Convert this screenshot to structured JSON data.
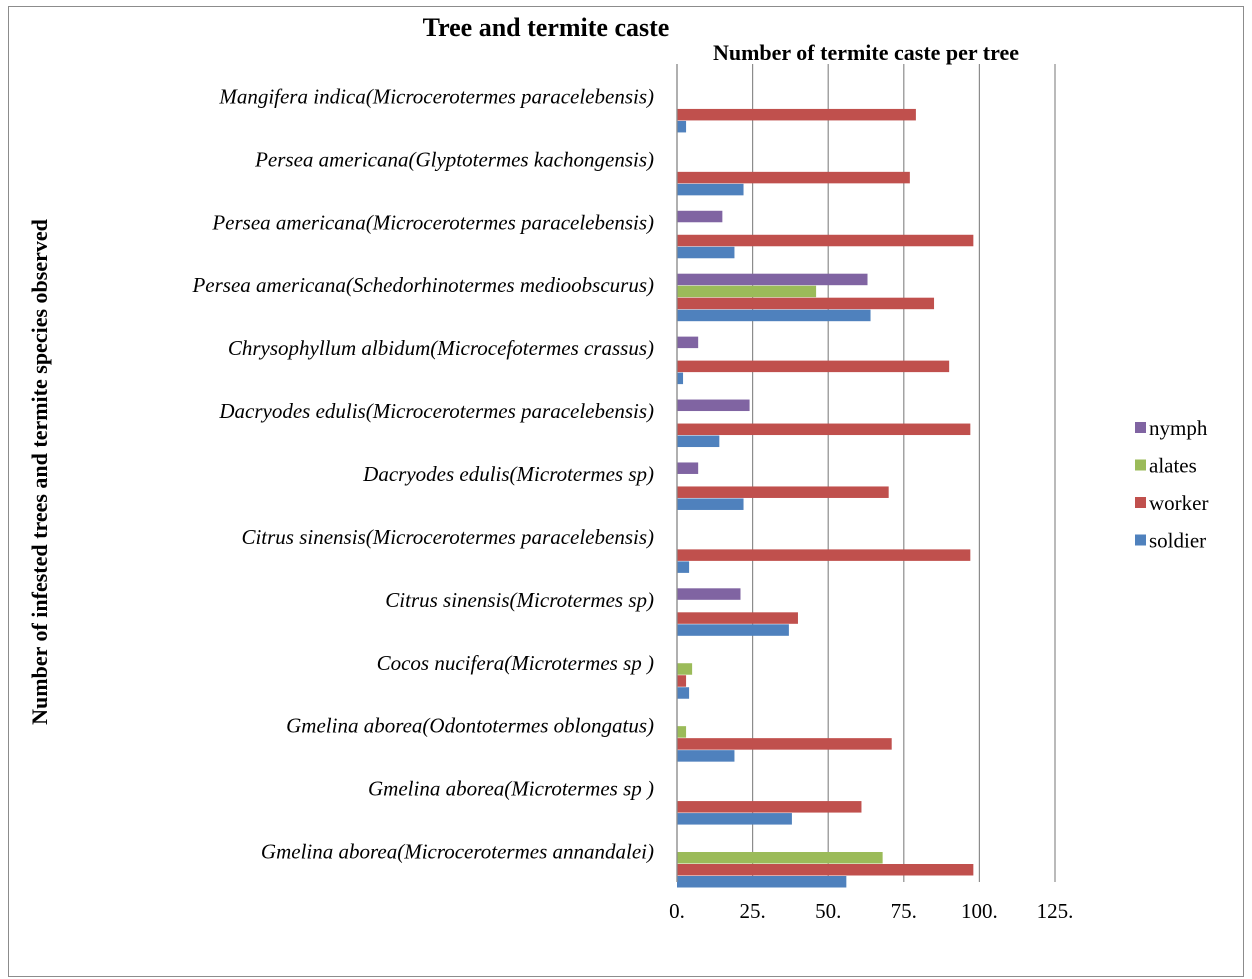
{
  "chart_data": {
    "type": "bar",
    "orientation": "horizontal",
    "title": "Tree and termite caste",
    "xlabel": "Number of termite caste per tree",
    "ylabel": "Number of infested trees and termite species observed",
    "categories": [
      "Gmelina   aborea(Microcerotermes annandalei)",
      "Gmelina   aborea(Microtermes  sp )",
      "Gmelina   aborea(Odontotermes oblongatus)",
      "Cocos      nucifera(Microtermes  sp )",
      "Citrus  sinensis(Microtermes  sp)",
      "Citrus  sinensis(Microcerotermes     paracelebensis)",
      "Dacryodes  edulis(Microtermes  sp)",
      "Dacryodes  edulis(Microcerotermes     paracelebensis)",
      "Chrysophyllum  albidum(Microcefotermes crassus)",
      "Persea    americana(Schedorhinotermes  medioobscurus)",
      "Persea    americana(Microcerotermes     paracelebensis)",
      "Persea    americana(Glyptotermes kachongensis)",
      "Mangifera indica(Microcerotermes     paracelebensis)"
    ],
    "series": [
      {
        "name": "soldier",
        "color": "#4f81bd",
        "values": [
          56,
          38,
          19,
          4,
          37,
          4,
          22,
          14,
          2,
          64,
          19,
          22,
          3
        ]
      },
      {
        "name": "worker",
        "color": "#c0504d",
        "values": [
          98,
          61,
          71,
          3,
          40,
          97,
          70,
          97,
          90,
          85,
          98,
          77,
          79
        ]
      },
      {
        "name": "alates",
        "color": "#9bbb59",
        "values": [
          68,
          0,
          3,
          5,
          0,
          0,
          0,
          0,
          0,
          46,
          0,
          0,
          0
        ]
      },
      {
        "name": "nymph",
        "color": "#8064a2",
        "values": [
          0,
          0,
          0,
          0,
          21,
          0,
          7,
          24,
          7,
          63,
          15,
          0,
          0
        ]
      }
    ],
    "xlim": [
      0,
      125
    ],
    "xticks": [
      "0.",
      "25.",
      "50.",
      "75.",
      "100.",
      "125."
    ],
    "legend_order": [
      "nymph",
      "alates",
      "worker",
      "soldier"
    ],
    "legend_position": "right",
    "grid": "vertical"
  }
}
